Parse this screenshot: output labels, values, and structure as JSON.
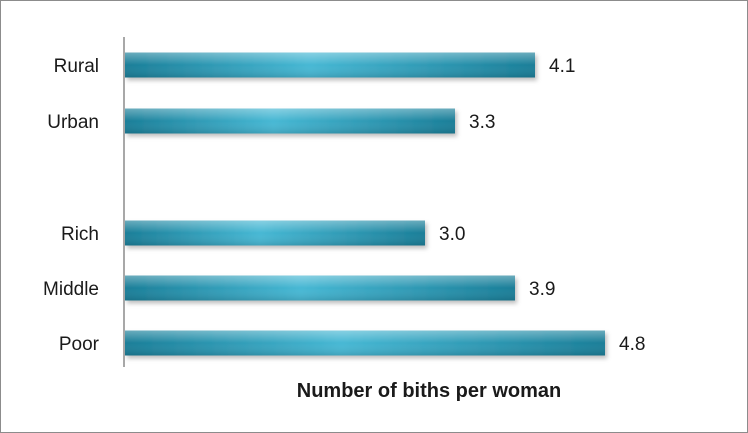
{
  "chart_data": {
    "type": "bar",
    "orientation": "horizontal",
    "title": "",
    "xlabel": "Number of biths per woman",
    "ylabel": "",
    "xlim": [
      0,
      5
    ],
    "grid": false,
    "legend": "none",
    "bar_color": "#2b9cb8",
    "categories": [
      "Rural",
      "Urban",
      "Rich",
      "Middle",
      "Poor"
    ],
    "values": [
      4.1,
      3.3,
      3.0,
      3.9,
      4.8
    ],
    "value_labels": [
      "4.1",
      "3.3",
      "3.0",
      "3.9",
      "4.8"
    ]
  }
}
